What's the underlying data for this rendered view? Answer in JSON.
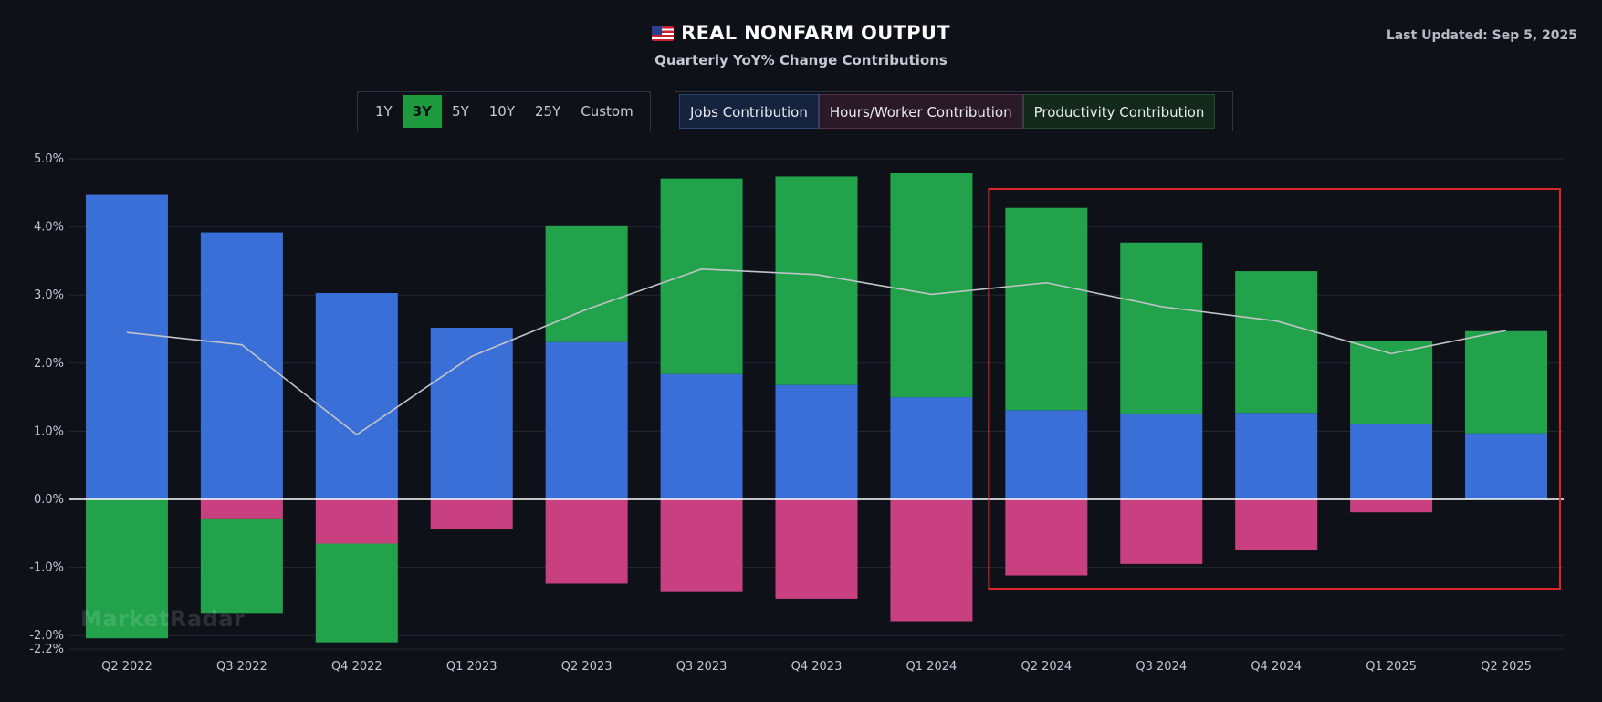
{
  "header": {
    "title": "REAL NONFARM OUTPUT",
    "subtitle": "Quarterly YoY% Change Contributions",
    "last_updated": "Last Updated: Sep 5, 2025"
  },
  "range_buttons": [
    "1Y",
    "3Y",
    "5Y",
    "10Y",
    "25Y",
    "Custom"
  ],
  "active_range": "3Y",
  "legend": {
    "jobs": "Jobs Contribution",
    "hours": "Hours/Worker Contribution",
    "productivity": "Productivity Contribution"
  },
  "watermark": "MarketRadar",
  "colors": {
    "jobs": "#3a6fd8",
    "hours": "#c8407f",
    "productivity": "#22a34b",
    "total_line": "#c2c4c9",
    "highlight_box": "#d8262b",
    "active_button": "#1e9a3e"
  },
  "chart_data": {
    "type": "bar",
    "stacked": true,
    "categories": [
      "Q2 2022",
      "Q3 2022",
      "Q4 2022",
      "Q1 2023",
      "Q2 2023",
      "Q3 2023",
      "Q4 2023",
      "Q1 2024",
      "Q2 2024",
      "Q3 2024",
      "Q4 2024",
      "Q1 2025",
      "Q2 2025"
    ],
    "series": [
      {
        "name": "Jobs Contribution",
        "values": [
          4.47,
          3.92,
          3.03,
          2.52,
          2.31,
          1.84,
          1.68,
          1.5,
          1.31,
          1.26,
          1.27,
          1.11,
          0.97
        ]
      },
      {
        "name": "Hours/Worker Contribution",
        "values": [
          0.0,
          -0.28,
          -0.65,
          -0.44,
          -1.24,
          -1.35,
          -1.46,
          -1.79,
          -1.12,
          -0.95,
          -0.75,
          -0.19,
          0.0
        ]
      },
      {
        "name": "Productivity Contribution",
        "values": [
          -2.04,
          -1.4,
          -1.45,
          0.0,
          1.7,
          2.87,
          3.06,
          3.29,
          2.97,
          2.51,
          2.08,
          1.21,
          1.5
        ]
      }
    ],
    "total_line": [
      2.45,
      2.27,
      0.95,
      2.1,
      2.79,
      3.38,
      3.3,
      3.01,
      3.18,
      2.83,
      2.62,
      2.14,
      2.48
    ],
    "y_ticks": [
      "5.0%",
      "4.0%",
      "3.0%",
      "2.0%",
      "1.0%",
      "0.0%",
      "-1.0%",
      "-2.0%",
      "-2.2%"
    ],
    "y_tick_values": [
      5,
      4,
      3,
      2,
      1,
      0,
      -1,
      -2,
      -2.2
    ],
    "ylim": [
      -2.2,
      5.0
    ],
    "grid": true,
    "highlight_range": [
      "Q2 2024",
      "Q2 2025"
    ]
  }
}
